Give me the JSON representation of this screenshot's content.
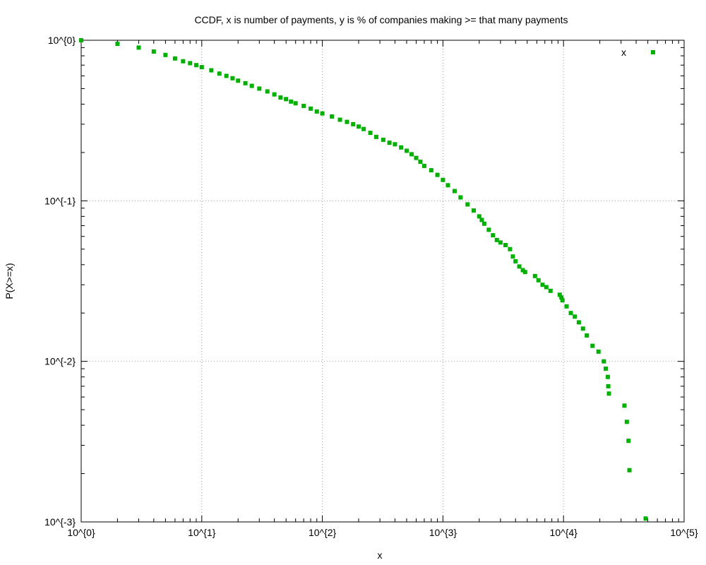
{
  "chart_data": {
    "type": "scatter",
    "title": "CCDF, x is number of payments, y is % of companies making >= that many payments",
    "xlabel": "x",
    "ylabel": "P(X>=x)",
    "xscale": "log",
    "yscale": "log",
    "xlim": [
      1,
      100000
    ],
    "ylim": [
      0.001,
      1
    ],
    "x_ticks": [
      {
        "value": 1,
        "label": "10^{0}"
      },
      {
        "value": 10,
        "label": "10^{1}"
      },
      {
        "value": 100,
        "label": "10^{2}"
      },
      {
        "value": 1000,
        "label": "10^{3}"
      },
      {
        "value": 10000,
        "label": "10^{4}"
      },
      {
        "value": 100000,
        "label": "10^{5}"
      }
    ],
    "y_ticks": [
      {
        "value": 0.001,
        "label": "10^{-3}"
      },
      {
        "value": 0.01,
        "label": "10^{-2}"
      },
      {
        "value": 0.1,
        "label": "10^{-1}"
      },
      {
        "value": 1,
        "label": "10^{0}"
      }
    ],
    "grid": true,
    "legend": {
      "position": "top-right",
      "entries": [
        {
          "label": "x",
          "color": "#00b000"
        }
      ]
    },
    "series": [
      {
        "name": "x",
        "color": "#00b000",
        "x": [
          1,
          2,
          3,
          4,
          5,
          6,
          7,
          8,
          9,
          10,
          12,
          14,
          16,
          18,
          20,
          23,
          26,
          30,
          35,
          40,
          45,
          50,
          55,
          60,
          70,
          80,
          90,
          100,
          120,
          140,
          160,
          180,
          200,
          220,
          250,
          280,
          320,
          360,
          400,
          450,
          500,
          550,
          600,
          650,
          700,
          800,
          900,
          1000,
          1100,
          1250,
          1400,
          1600,
          1800,
          2000,
          2100,
          2200,
          2400,
          2600,
          2800,
          3000,
          3300,
          3600,
          3800,
          4000,
          4300,
          4600,
          4800,
          5800,
          6200,
          6700,
          7200,
          7800,
          9300,
          9600,
          9800,
          10600,
          11500,
          12400,
          13400,
          14500,
          15600,
          17400,
          19500,
          21600,
          22400,
          23300,
          23500,
          23800,
          32000,
          33500,
          34600,
          35200,
          48000
        ],
        "y": [
          1.0,
          0.95,
          0.9,
          0.85,
          0.81,
          0.77,
          0.74,
          0.72,
          0.7,
          0.68,
          0.65,
          0.62,
          0.6,
          0.58,
          0.56,
          0.54,
          0.52,
          0.5,
          0.48,
          0.46,
          0.44,
          0.43,
          0.415,
          0.405,
          0.39,
          0.375,
          0.36,
          0.35,
          0.335,
          0.32,
          0.31,
          0.3,
          0.29,
          0.28,
          0.265,
          0.25,
          0.24,
          0.23,
          0.225,
          0.215,
          0.205,
          0.195,
          0.185,
          0.175,
          0.165,
          0.155,
          0.145,
          0.135,
          0.125,
          0.115,
          0.105,
          0.095,
          0.087,
          0.08,
          0.076,
          0.072,
          0.066,
          0.061,
          0.057,
          0.055,
          0.053,
          0.05,
          0.045,
          0.042,
          0.039,
          0.037,
          0.036,
          0.034,
          0.032,
          0.03,
          0.029,
          0.0275,
          0.026,
          0.025,
          0.024,
          0.022,
          0.02,
          0.019,
          0.0175,
          0.016,
          0.0145,
          0.0125,
          0.0115,
          0.01,
          0.009,
          0.008,
          0.007,
          0.0063,
          0.0053,
          0.0042,
          0.0032,
          0.0021,
          0.00105
        ]
      }
    ]
  }
}
